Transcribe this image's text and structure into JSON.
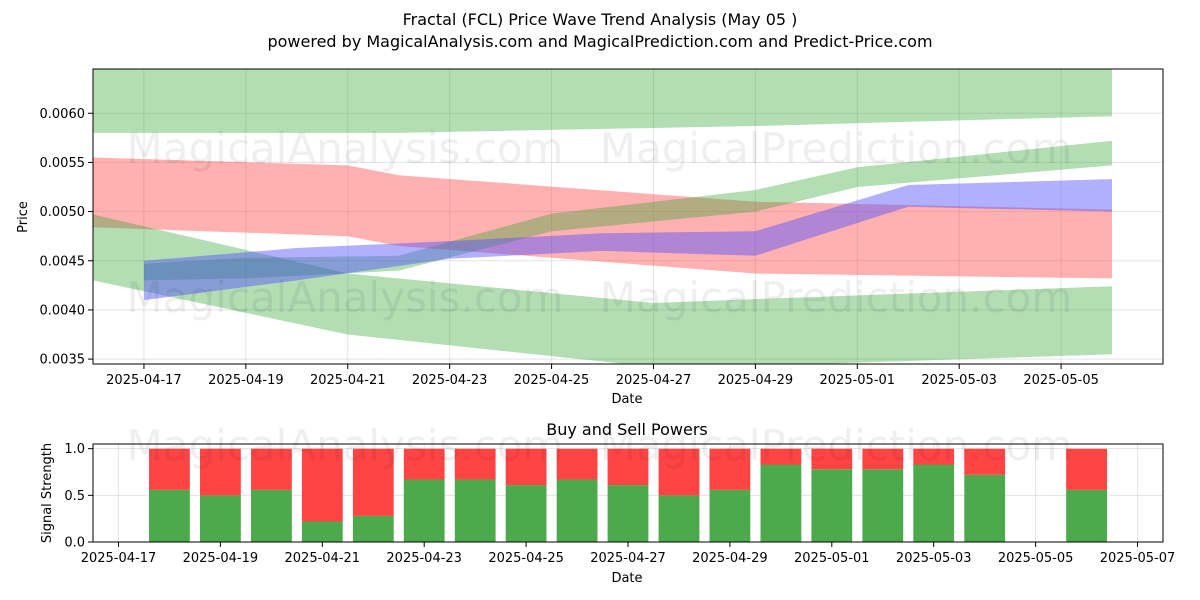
{
  "figure": {
    "title": "Fractal (FCL) Price Wave Trend Analysis (May 05 )",
    "subtitle": "powered by MagicalAnalysis.com and MagicalPrediction.com and Predict-Price.com",
    "watermark_left": "MagicalAnalysis.com",
    "watermark_right": "MagicalPrediction.com"
  },
  "chart_data": [
    {
      "type": "area",
      "xlabel": "Date",
      "ylabel": "Price",
      "x_ticks": [
        "2025-04-17",
        "2025-04-19",
        "2025-04-21",
        "2025-04-23",
        "2025-04-25",
        "2025-04-27",
        "2025-04-29",
        "2025-05-01",
        "2025-05-03",
        "2025-05-05"
      ],
      "y_ticks": [
        0.0035,
        0.004,
        0.0045,
        0.005,
        0.0055,
        0.006
      ],
      "y_tick_labels": [
        "0.0035",
        "0.0040",
        "0.0045",
        "0.0050",
        "0.0055",
        "0.0060"
      ],
      "xlim": [
        "2025-04-16",
        "2025-05-07"
      ],
      "ylim": [
        0.00345,
        0.00645
      ],
      "grid": true,
      "colors": {
        "green_band": "#2ca02c",
        "red_band": "#ff4444",
        "blue_band": "#4f4fff"
      },
      "bands": [
        {
          "color": "green",
          "x": [
            "2025-04-16",
            "2025-04-22",
            "2025-04-29",
            "2025-05-06"
          ],
          "lower": [
            0.0058,
            0.0058,
            0.00587,
            0.00597
          ],
          "upper": [
            0.0065,
            0.0065,
            0.0065,
            0.0065
          ]
        },
        {
          "color": "red",
          "x": [
            "2025-04-16",
            "2025-04-21",
            "2025-04-22",
            "2025-04-29",
            "2025-05-06"
          ],
          "lower": [
            0.00484,
            0.00475,
            0.00465,
            0.00437,
            0.00432
          ],
          "upper": [
            0.00555,
            0.00547,
            0.00537,
            0.0051,
            0.00502
          ]
        },
        {
          "color": "green",
          "x": [
            "2025-04-16",
            "2025-04-21",
            "2025-04-27",
            "2025-04-29",
            "2025-05-06"
          ],
          "lower": [
            0.0043,
            0.00375,
            0.00342,
            0.00343,
            0.00355
          ],
          "upper": [
            0.00497,
            0.00437,
            0.00407,
            0.00411,
            0.00424
          ]
        },
        {
          "color": "green",
          "x": [
            "2025-04-17",
            "2025-04-19",
            "2025-04-22",
            "2025-04-25",
            "2025-04-29",
            "2025-05-01",
            "2025-05-06"
          ],
          "lower": [
            0.0043,
            0.00432,
            0.0044,
            0.0048,
            0.005,
            0.00525,
            0.00547
          ],
          "upper": [
            0.00447,
            0.00453,
            0.00455,
            0.00498,
            0.00522,
            0.00545,
            0.00572
          ]
        },
        {
          "color": "blue",
          "x": [
            "2025-04-17",
            "2025-04-20",
            "2025-04-23",
            "2025-04-26",
            "2025-04-29",
            "2025-05-02",
            "2025-05-06"
          ],
          "lower": [
            0.0041,
            0.0043,
            0.00452,
            0.0046,
            0.00455,
            0.00505,
            0.005
          ],
          "upper": [
            0.0045,
            0.00463,
            0.0047,
            0.00478,
            0.0048,
            0.00527,
            0.00533
          ]
        }
      ]
    },
    {
      "type": "bar",
      "title": "Buy and Sell Powers",
      "xlabel": "Date",
      "ylabel": "Signal Strength",
      "x_ticks": [
        "2025-04-17",
        "2025-04-19",
        "2025-04-21",
        "2025-04-23",
        "2025-04-25",
        "2025-04-27",
        "2025-04-29",
        "2025-05-01",
        "2025-05-03",
        "2025-05-05",
        "2025-05-07"
      ],
      "y_ticks": [
        0.0,
        0.5,
        1.0
      ],
      "y_tick_labels": [
        "0.0",
        "0.5",
        "1.0"
      ],
      "xlim": [
        "2025-04-16 12:00",
        "2025-05-07 12:00"
      ],
      "ylim": [
        0,
        1.05
      ],
      "grid": true,
      "colors": {
        "buy": "#4caa4c",
        "sell": "#ff4444"
      },
      "categories": [
        "2025-04-18",
        "2025-04-19",
        "2025-04-20",
        "2025-04-21",
        "2025-04-22",
        "2025-04-23",
        "2025-04-24",
        "2025-04-25",
        "2025-04-26",
        "2025-04-27",
        "2025-04-28",
        "2025-04-29",
        "2025-04-30",
        "2025-05-01",
        "2025-05-02",
        "2025-05-03",
        "2025-05-04",
        "2025-05-06"
      ],
      "series": [
        {
          "values": [
            0.56,
            0.5,
            0.56,
            0.22,
            0.28,
            0.67,
            0.67,
            0.61,
            0.67,
            0.61,
            0.5,
            0.56,
            0.83,
            0.78,
            0.78,
            0.83,
            0.72,
            0.56
          ]
        },
        {
          "values": [
            0.44,
            0.5,
            0.44,
            0.78,
            0.72,
            0.33,
            0.33,
            0.39,
            0.33,
            0.39,
            0.5,
            0.44,
            0.17,
            0.22,
            0.22,
            0.17,
            0.28,
            0.44
          ]
        }
      ]
    }
  ]
}
